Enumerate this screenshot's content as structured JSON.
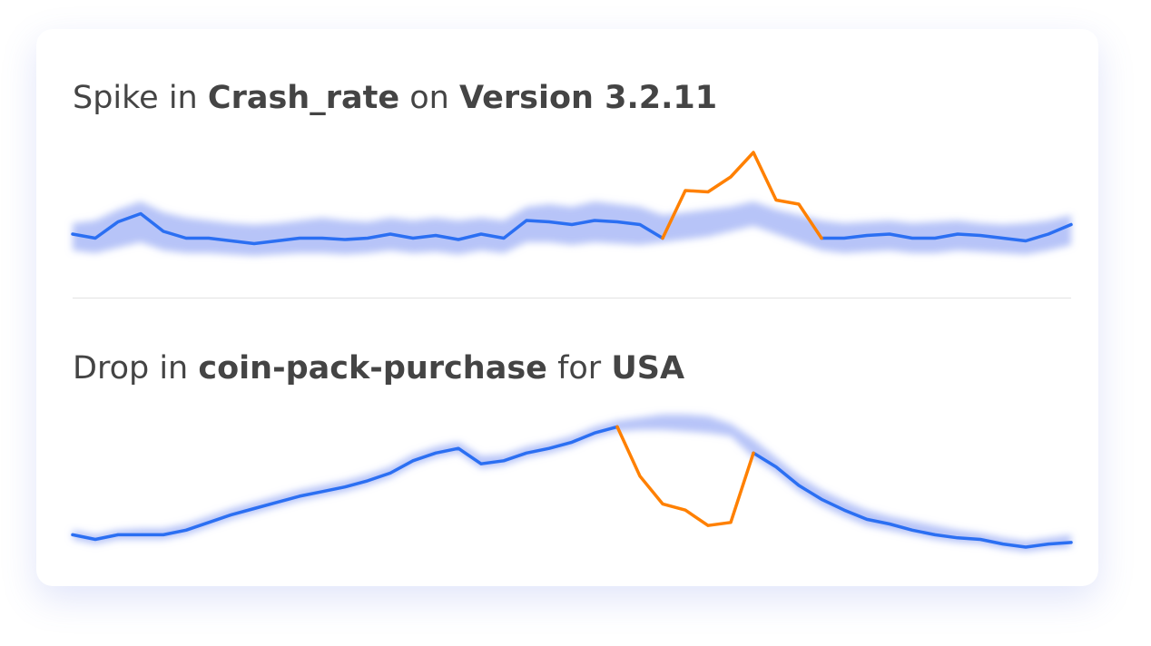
{
  "chart_data": [
    {
      "type": "line",
      "title": [
        {
          "text": "Spike in"
        },
        {
          "text": "Crash_rate",
          "bold": true
        },
        {
          "text": "on"
        },
        {
          "text": "Version 3.2.11",
          "bold": true
        }
      ],
      "ylim": [
        0,
        100
      ],
      "band": {
        "color": "#9fb0f5",
        "upper": [
          36,
          38,
          46,
          52,
          44,
          40,
          38,
          36,
          35,
          36,
          38,
          40,
          38,
          37,
          40,
          38,
          40,
          38,
          40,
          38,
          48,
          50,
          48,
          52,
          50,
          48,
          42,
          44,
          46,
          48,
          52,
          46,
          42,
          38,
          36,
          37,
          38,
          36,
          37,
          38,
          36,
          35,
          36,
          38,
          42
        ],
        "lower": [
          16,
          14,
          18,
          22,
          16,
          14,
          14,
          13,
          12,
          13,
          14,
          14,
          13,
          14,
          16,
          14,
          15,
          13,
          16,
          14,
          22,
          22,
          20,
          22,
          21,
          20,
          22,
          24,
          26,
          30,
          34,
          28,
          22,
          16,
          14,
          15,
          16,
          14,
          14,
          16,
          15,
          14,
          13,
          16,
          20
        ]
      },
      "series": [
        {
          "color": "#2b6ff2",
          "values": [
            28,
            25,
            37,
            43,
            30,
            25,
            25,
            23,
            21,
            23,
            25,
            25,
            24,
            25,
            28,
            25,
            27,
            24,
            28,
            25,
            38,
            37,
            35,
            38,
            37,
            35,
            25,
            null,
            null,
            null,
            null,
            null,
            null,
            25,
            25,
            27,
            28,
            25,
            25,
            28,
            27,
            25,
            23,
            28,
            35
          ]
        },
        {
          "color": "#ff8000",
          "values": [
            null,
            null,
            null,
            null,
            null,
            null,
            null,
            null,
            null,
            null,
            null,
            null,
            null,
            null,
            null,
            null,
            null,
            null,
            null,
            null,
            null,
            null,
            null,
            null,
            null,
            null,
            25,
            60,
            59,
            70,
            88,
            53,
            50,
            25,
            null,
            null,
            null,
            null,
            null,
            null,
            null,
            null,
            null,
            null,
            null
          ]
        }
      ]
    },
    {
      "type": "line",
      "title": [
        {
          "text": "Drop in"
        },
        {
          "text": "coin-pack-purchase",
          "bold": true
        },
        {
          "text": "for"
        },
        {
          "text": "USA",
          "bold": true
        }
      ],
      "ylim": [
        0,
        100
      ],
      "band": {
        "color": "#9fb0f5",
        "upper": [
          21,
          18,
          21,
          22,
          22,
          25,
          30,
          35,
          39,
          43,
          47,
          50,
          53,
          57,
          62,
          70,
          75,
          78,
          69,
          70,
          75,
          78,
          82,
          88,
          92,
          94,
          96,
          96,
          95,
          90,
          80,
          68,
          56,
          47,
          40,
          34,
          30,
          27,
          24,
          21,
          19,
          16,
          14,
          16,
          18
        ],
        "lower": [
          15,
          12,
          15,
          15,
          15,
          18,
          23,
          28,
          32,
          36,
          40,
          43,
          46,
          50,
          55,
          63,
          68,
          71,
          61,
          63,
          68,
          71,
          75,
          81,
          85,
          86,
          86,
          85,
          84,
          82,
          68,
          58,
          46,
          37,
          30,
          24,
          21,
          18,
          15,
          13,
          12,
          9,
          7,
          9,
          10
        ]
      },
      "series": [
        {
          "color": "#2b6ff2",
          "values": [
            18,
            15,
            18,
            18,
            18,
            21,
            26,
            31,
            35,
            39,
            43,
            46,
            49,
            53,
            58,
            66,
            71,
            74,
            64,
            66,
            71,
            74,
            78,
            84,
            88,
            null,
            null,
            null,
            null,
            null,
            71,
            62,
            50,
            41,
            34,
            28,
            25,
            21,
            18,
            16,
            15,
            12,
            10,
            12,
            13
          ]
        },
        {
          "color": "#ff8000",
          "values": [
            null,
            null,
            null,
            null,
            null,
            null,
            null,
            null,
            null,
            null,
            null,
            null,
            null,
            null,
            null,
            null,
            null,
            null,
            null,
            null,
            null,
            null,
            null,
            null,
            88,
            56,
            38,
            34,
            24,
            26,
            71,
            null,
            null,
            null,
            null,
            null,
            null,
            null,
            null,
            null,
            null,
            null,
            null,
            null,
            null
          ]
        }
      ]
    }
  ]
}
